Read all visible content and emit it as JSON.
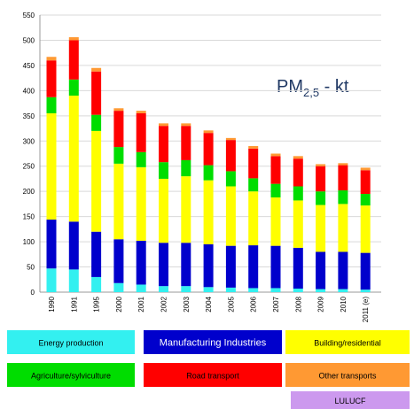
{
  "chart_data": {
    "type": "stacked_bar",
    "annotation": {
      "text": "PM",
      "subscript": "2,5",
      "suffix": " - kt"
    },
    "categories": [
      "1990",
      "1991",
      "1995",
      "2000",
      "2001",
      "2002",
      "2003",
      "2004",
      "2005",
      "2006",
      "2007",
      "2008",
      "2009",
      "2010",
      "2011 (e)"
    ],
    "series": [
      {
        "name": "Energy production",
        "color": "#33f0f0",
        "values": [
          47,
          45,
          30,
          18,
          15,
          12,
          12,
          10,
          9,
          8,
          8,
          7,
          6,
          6,
          5
        ]
      },
      {
        "name": "Manufacturing Industries",
        "color": "#0000cc",
        "values": [
          97,
          95,
          90,
          87,
          87,
          86,
          86,
          85,
          83,
          85,
          84,
          81,
          74,
          74,
          73
        ]
      },
      {
        "name": "Building/residential",
        "color": "#ffff00",
        "values": [
          211,
          250,
          200,
          150,
          146,
          127,
          132,
          127,
          118,
          107,
          96,
          94,
          93,
          95,
          94
        ]
      },
      {
        "name": "Agriculture/sylviculture",
        "color": "#00dd00",
        "values": [
          32,
          32,
          32,
          33,
          30,
          33,
          32,
          30,
          30,
          26,
          27,
          28,
          27,
          27,
          23
        ]
      },
      {
        "name": "Road transport",
        "color": "#ff0000",
        "values": [
          73,
          78,
          86,
          72,
          77,
          72,
          68,
          64,
          62,
          59,
          55,
          55,
          50,
          50,
          47
        ]
      },
      {
        "name": "Other transports",
        "color": "#ff9933",
        "values": [
          7,
          6,
          7,
          5,
          5,
          5,
          5,
          5,
          4,
          5,
          5,
          5,
          4,
          4,
          5
        ]
      },
      {
        "name": "LULUCF",
        "color": "#cc99ee",
        "values": [
          0,
          0,
          0,
          0,
          0,
          0,
          0,
          0,
          0,
          0,
          0,
          0,
          0,
          0,
          0
        ]
      }
    ],
    "ylim": [
      0,
      550
    ],
    "yticks": [
      0,
      50,
      100,
      150,
      200,
      250,
      300,
      350,
      400,
      450,
      500,
      550
    ],
    "grid": true
  }
}
